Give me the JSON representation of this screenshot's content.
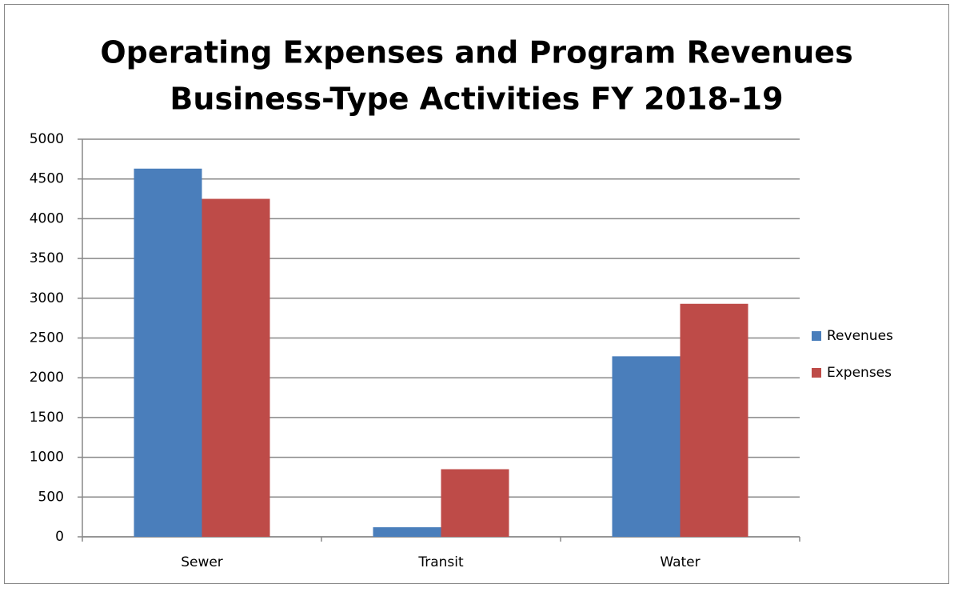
{
  "chart_data": {
    "type": "bar",
    "title": [
      "Operating Expenses and Program Revenues",
      "Business-Type Activities FY 2018-19"
    ],
    "categories": [
      "Sewer",
      "Transit",
      "Water"
    ],
    "series": [
      {
        "name": "Revenues",
        "color": "#4a7ebb",
        "values": [
          4630,
          120,
          2270
        ]
      },
      {
        "name": "Expenses",
        "color": "#be4b48",
        "values": [
          4250,
          850,
          2930
        ]
      }
    ],
    "ylim": [
      0,
      5000
    ],
    "yticks": [
      0,
      500,
      1000,
      1500,
      2000,
      2500,
      3000,
      3500,
      4000,
      4500,
      5000
    ],
    "grid": true,
    "legend": "right"
  }
}
